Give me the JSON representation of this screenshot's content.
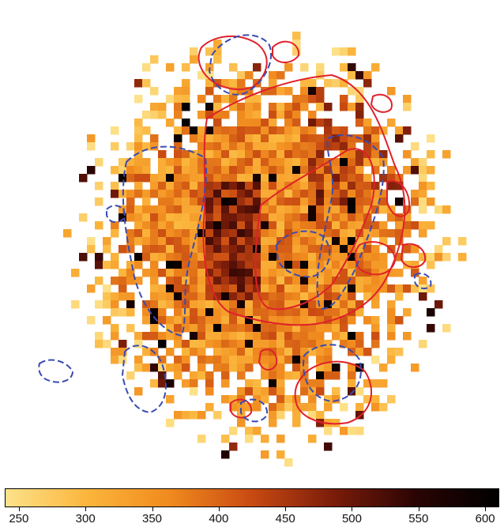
{
  "figure": {
    "colorbar": {
      "min": 240,
      "max": 610,
      "ticks": [
        250,
        300,
        350,
        400,
        450,
        500,
        550,
        600
      ],
      "tick_labels": [
        "250",
        "300",
        "350",
        "400",
        "450",
        "500",
        "550",
        "600"
      ],
      "colors": [
        "#fde28a",
        "#fbb53c",
        "#f08a1e",
        "#c84a12",
        "#7a1c0a",
        "#2a0404",
        "#000000"
      ]
    },
    "contour_colors": {
      "red": "#e0212a",
      "blue": "#3a4bb0"
    },
    "colormap_style": "afmhot-reversed (pale yellow to black)"
  }
}
